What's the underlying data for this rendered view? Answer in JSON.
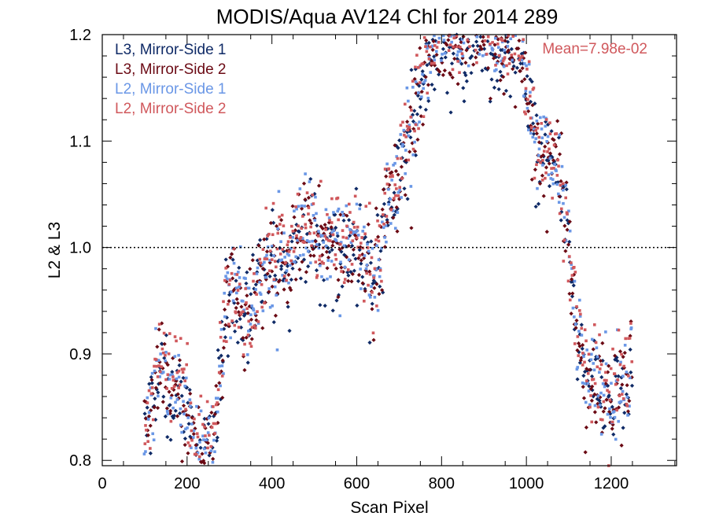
{
  "chart_data": {
    "type": "scatter",
    "title": "MODIS/Aqua AV124 Chl for 2014 289",
    "xlabel": "Scan Pixel",
    "ylabel": "L2 & L3",
    "xlim": [
      0,
      1354
    ],
    "ylim": [
      0.795,
      1.2
    ],
    "x_ticks": [
      0,
      200,
      400,
      600,
      800,
      1000,
      1200
    ],
    "x_tick_labels": [
      "0",
      "200",
      "400",
      "600",
      "800",
      "1000",
      "1200"
    ],
    "y_ticks": [
      0.8,
      0.9,
      1.0,
      1.1,
      1.2
    ],
    "y_tick_labels": [
      "0.8",
      "0.9",
      "1.0",
      "1.1",
      "1.2"
    ],
    "reference_line": {
      "y": 1.0,
      "style": "dotted"
    },
    "annotation": "Mean=7.98e-02",
    "legend_position": "top-left",
    "grid": false,
    "colors": {
      "l3_ms1": "#0f2a66",
      "l3_ms2": "#6b0a14",
      "l2_ms1": "#6a97e6",
      "l2_ms2": "#d0585c"
    },
    "trend": {
      "x": [
        100,
        120,
        140,
        160,
        180,
        200,
        220,
        240,
        260,
        280,
        300,
        320,
        340,
        360,
        380,
        400,
        420,
        440,
        460,
        480,
        500,
        520,
        540,
        560,
        580,
        600,
        620,
        640,
        660,
        680,
        700,
        720,
        740,
        760,
        780,
        800,
        820,
        840,
        860,
        880,
        900,
        920,
        940,
        960,
        980,
        1000,
        1020,
        1040,
        1060,
        1080,
        1100,
        1120,
        1140,
        1160,
        1180,
        1200,
        1220,
        1240,
        1250
      ],
      "y": [
        0.83,
        0.86,
        0.89,
        0.86,
        0.88,
        0.85,
        0.82,
        0.8,
        0.83,
        0.9,
        0.96,
        0.96,
        0.93,
        0.95,
        0.98,
        0.99,
        1.0,
        0.99,
        1.01,
        1.02,
        1.01,
        1.0,
        1.01,
        1.0,
        1.0,
        1.01,
        1.0,
        0.97,
        1.02,
        1.05,
        1.07,
        1.1,
        1.14,
        1.17,
        1.19,
        1.2,
        1.2,
        1.19,
        1.2,
        1.2,
        1.2,
        1.19,
        1.18,
        1.19,
        1.2,
        1.15,
        1.1,
        1.09,
        1.08,
        1.07,
        1.0,
        0.92,
        0.88,
        0.87,
        0.87,
        0.86,
        0.87,
        0.87,
        0.9
      ]
    },
    "series": [
      {
        "name": "L3, Mirror-Side 1",
        "color": "#0f2a66",
        "marker": "diamond",
        "offset": -0.006
      },
      {
        "name": "L3, Mirror-Side 2",
        "color": "#6b0a14",
        "marker": "diamond",
        "offset": -0.002
      },
      {
        "name": "L2, Mirror-Side 1",
        "color": "#6a97e6",
        "marker": "square",
        "offset": 0.004
      },
      {
        "name": "L2, Mirror-Side 2",
        "color": "#d0585c",
        "marker": "square",
        "offset": 0.006
      }
    ]
  }
}
